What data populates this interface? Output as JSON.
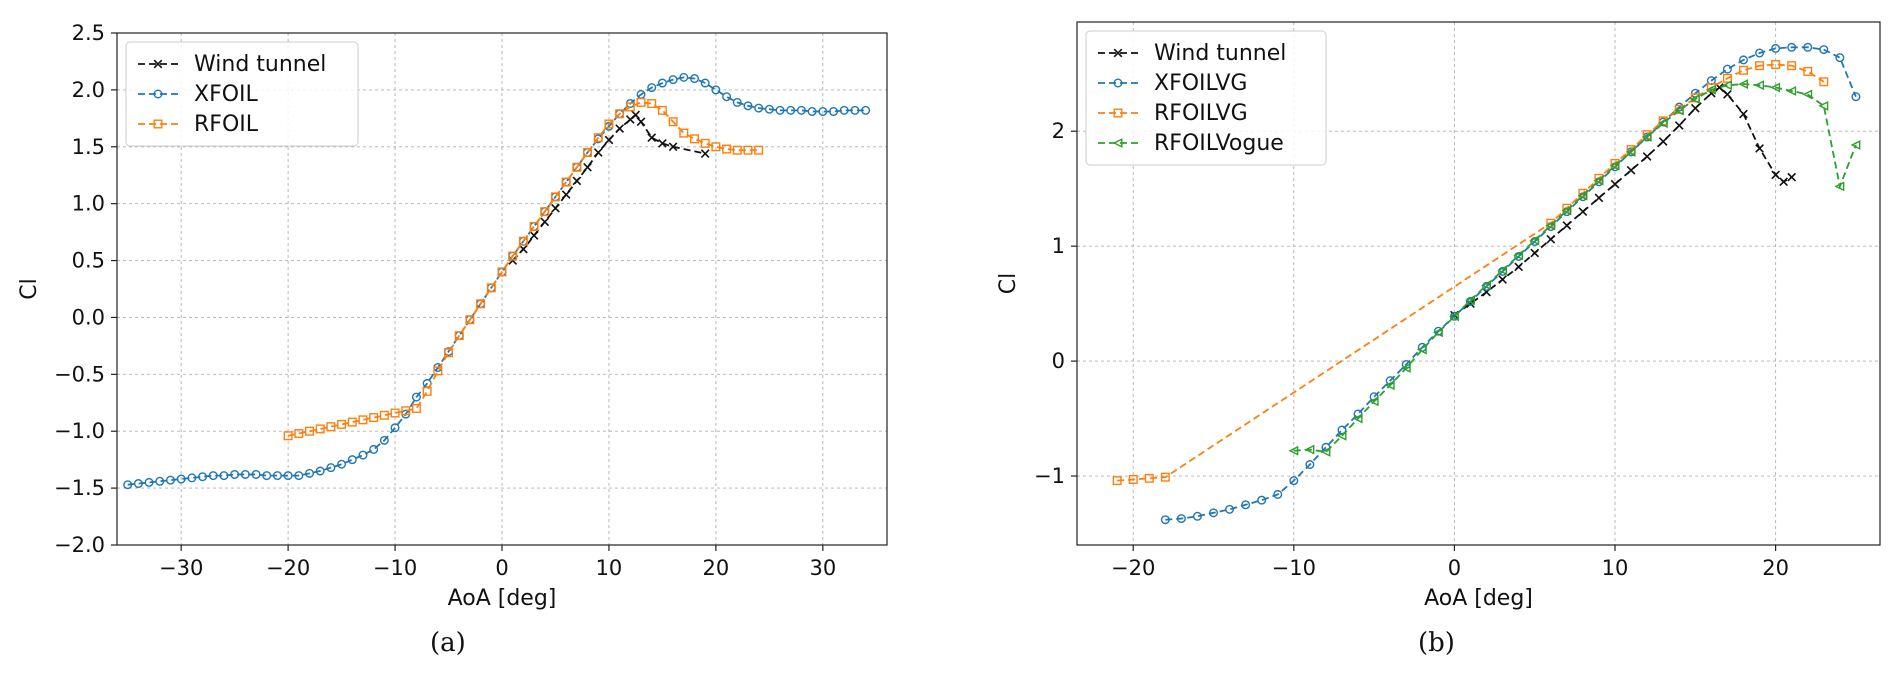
{
  "chart_data": [
    {
      "type": "line",
      "caption": "(a)",
      "xlabel": "AoA [deg]",
      "ylabel": "Cl",
      "xlim": [
        -36,
        36
      ],
      "ylim": [
        -2.0,
        2.5
      ],
      "xticks": [
        -30,
        -20,
        -10,
        0,
        10,
        20,
        30
      ],
      "yticks": [
        -2.0,
        -1.5,
        -1.0,
        -0.5,
        0.0,
        0.5,
        1.0,
        1.5,
        2.0,
        2.5
      ],
      "ytick_labels": [
        "−2.0",
        "−1.5",
        "−1.0",
        "−0.5",
        "0.0",
        "0.5",
        "1.0",
        "1.5",
        "2.0",
        "2.5"
      ],
      "xtick_labels": [
        "−30",
        "−20",
        "−10",
        "0",
        "10",
        "20",
        "30"
      ],
      "grid": true,
      "legend_position": "top-left",
      "series": [
        {
          "name": "Wind tunnel",
          "color": "#111111",
          "marker": "x",
          "x": [
            1,
            2,
            3,
            4,
            5,
            6,
            7,
            8,
            9,
            10,
            11,
            12,
            12.5,
            13,
            14,
            15,
            16,
            19
          ],
          "y": [
            0.5,
            0.6,
            0.72,
            0.84,
            0.96,
            1.08,
            1.2,
            1.32,
            1.45,
            1.56,
            1.66,
            1.74,
            1.78,
            1.72,
            1.58,
            1.53,
            1.5,
            1.44
          ]
        },
        {
          "name": "XFOIL",
          "color": "#1f77b4",
          "marker": "o",
          "x": [
            -35,
            -34,
            -33,
            -32,
            -31,
            -30,
            -29,
            -28,
            -27,
            -26,
            -25,
            -24,
            -23,
            -22,
            -21,
            -20,
            -19,
            -18,
            -17,
            -16,
            -15,
            -14,
            -13,
            -12,
            -11,
            -10,
            -9,
            -8,
            -7,
            -6,
            -5,
            -4,
            -3,
            -2,
            -1,
            0,
            1,
            2,
            3,
            4,
            5,
            6,
            7,
            8,
            9,
            10,
            11,
            12,
            13,
            14,
            15,
            16,
            17,
            18,
            19,
            20,
            21,
            22,
            23,
            24,
            25,
            26,
            27,
            28,
            29,
            30,
            31,
            32,
            33,
            34
          ],
          "y": [
            -1.47,
            -1.46,
            -1.45,
            -1.44,
            -1.43,
            -1.42,
            -1.41,
            -1.4,
            -1.39,
            -1.39,
            -1.38,
            -1.38,
            -1.38,
            -1.39,
            -1.39,
            -1.39,
            -1.39,
            -1.37,
            -1.35,
            -1.32,
            -1.29,
            -1.25,
            -1.21,
            -1.16,
            -1.08,
            -0.97,
            -0.85,
            -0.7,
            -0.58,
            -0.44,
            -0.3,
            -0.16,
            -0.02,
            0.12,
            0.26,
            0.4,
            0.54,
            0.67,
            0.8,
            0.93,
            1.06,
            1.19,
            1.32,
            1.45,
            1.57,
            1.68,
            1.79,
            1.88,
            1.96,
            2.02,
            2.06,
            2.09,
            2.11,
            2.1,
            2.06,
            2.0,
            1.94,
            1.89,
            1.86,
            1.84,
            1.83,
            1.82,
            1.82,
            1.82,
            1.81,
            1.81,
            1.81,
            1.82,
            1.82,
            1.82
          ]
        },
        {
          "name": "RFOIL",
          "color": "#ff7f0e",
          "marker": "s",
          "x": [
            -20,
            -19,
            -18,
            -17,
            -16,
            -15,
            -14,
            -13,
            -12,
            -11,
            -10,
            -9,
            -8,
            -7,
            -6,
            -5,
            -4,
            -3,
            -2,
            -1,
            0,
            1,
            2,
            3,
            4,
            5,
            6,
            7,
            8,
            9,
            10,
            11,
            12,
            13,
            14,
            15,
            16,
            17,
            18,
            19,
            20,
            21,
            22,
            23,
            24
          ],
          "y": [
            -1.04,
            -1.02,
            -1.0,
            -0.98,
            -0.96,
            -0.94,
            -0.92,
            -0.9,
            -0.88,
            -0.86,
            -0.84,
            -0.82,
            -0.8,
            -0.65,
            -0.47,
            -0.31,
            -0.16,
            -0.02,
            0.12,
            0.26,
            0.4,
            0.54,
            0.67,
            0.8,
            0.93,
            1.06,
            1.19,
            1.32,
            1.45,
            1.58,
            1.7,
            1.79,
            1.85,
            1.89,
            1.88,
            1.82,
            1.72,
            1.62,
            1.57,
            1.53,
            1.5,
            1.48,
            1.47,
            1.47,
            1.47
          ]
        }
      ]
    },
    {
      "type": "line",
      "caption": "(b)",
      "xlabel": "AoA [deg]",
      "ylabel": "Cl",
      "xlim": [
        -23.5,
        26.5
      ],
      "ylim": [
        -1.6,
        2.95
      ],
      "xticks": [
        -20,
        -10,
        0,
        10,
        20
      ],
      "yticks": [
        -1,
        0,
        1,
        2
      ],
      "ytick_labels": [
        "−1",
        "0",
        "1",
        "2"
      ],
      "xtick_labels": [
        "−20",
        "−10",
        "0",
        "10",
        "20"
      ],
      "grid": true,
      "legend_position": "top-left",
      "series": [
        {
          "name": "Wind tunnel",
          "color": "#111111",
          "marker": "x",
          "x": [
            0,
            1,
            2,
            3,
            4,
            5,
            6,
            7,
            8,
            9,
            10,
            11,
            12,
            13,
            14,
            15,
            16,
            16.5,
            17,
            18,
            19,
            20,
            20.5,
            21
          ],
          "y": [
            0.4,
            0.5,
            0.6,
            0.71,
            0.82,
            0.94,
            1.06,
            1.18,
            1.3,
            1.42,
            1.54,
            1.66,
            1.78,
            1.91,
            2.05,
            2.2,
            2.33,
            2.38,
            2.32,
            2.15,
            1.85,
            1.62,
            1.56,
            1.6
          ]
        },
        {
          "name": "XFOILVG",
          "color": "#1f77b4",
          "marker": "o",
          "x": [
            -18,
            -17,
            -16,
            -15,
            -14,
            -13,
            -12,
            -11,
            -10,
            -9,
            -8,
            -7,
            -6,
            -5,
            -4,
            -3,
            -2,
            -1,
            0,
            1,
            2,
            3,
            4,
            5,
            6,
            7,
            8,
            9,
            10,
            11,
            12,
            13,
            14,
            15,
            16,
            17,
            18,
            19,
            20,
            21,
            22,
            23,
            24,
            25
          ],
          "y": [
            -1.38,
            -1.37,
            -1.35,
            -1.32,
            -1.29,
            -1.25,
            -1.21,
            -1.16,
            -1.04,
            -0.9,
            -0.75,
            -0.6,
            -0.46,
            -0.31,
            -0.17,
            -0.03,
            0.12,
            0.26,
            0.39,
            0.52,
            0.65,
            0.78,
            0.91,
            1.04,
            1.17,
            1.3,
            1.43,
            1.56,
            1.69,
            1.82,
            1.95,
            2.08,
            2.21,
            2.33,
            2.44,
            2.54,
            2.62,
            2.68,
            2.72,
            2.73,
            2.73,
            2.71,
            2.64,
            2.3
          ]
        },
        {
          "name": "RFOILVG",
          "color": "#ff7f0e",
          "marker": "s",
          "x": [
            -21,
            -20,
            -19,
            -18,
            6,
            7,
            8,
            9,
            10,
            11,
            12,
            13,
            14,
            15,
            16,
            17,
            18,
            19,
            20,
            21,
            22,
            23
          ],
          "y": [
            -1.04,
            -1.03,
            -1.02,
            -1.01,
            1.2,
            1.33,
            1.46,
            1.59,
            1.72,
            1.84,
            1.97,
            2.09,
            2.19,
            2.29,
            2.38,
            2.46,
            2.53,
            2.57,
            2.58,
            2.57,
            2.52,
            2.43
          ]
        },
        {
          "name": "RFOILVogue",
          "color": "#2ca02c",
          "marker": "<",
          "x": [
            -10,
            -9,
            -8,
            -7,
            -6,
            -5,
            -4,
            -3,
            -2,
            -1,
            0,
            1,
            2,
            3,
            4,
            5,
            6,
            7,
            8,
            9,
            10,
            11,
            12,
            13,
            14,
            15,
            16,
            17,
            18,
            19,
            20,
            21,
            22,
            23,
            24,
            25
          ],
          "y": [
            -0.78,
            -0.77,
            -0.79,
            -0.65,
            -0.5,
            -0.35,
            -0.21,
            -0.06,
            0.1,
            0.25,
            0.39,
            0.53,
            0.66,
            0.79,
            0.92,
            1.05,
            1.18,
            1.31,
            1.44,
            1.57,
            1.7,
            1.82,
            1.95,
            2.07,
            2.18,
            2.28,
            2.36,
            2.4,
            2.41,
            2.4,
            2.38,
            2.35,
            2.32,
            2.22,
            1.52,
            1.88
          ]
        }
      ]
    }
  ]
}
